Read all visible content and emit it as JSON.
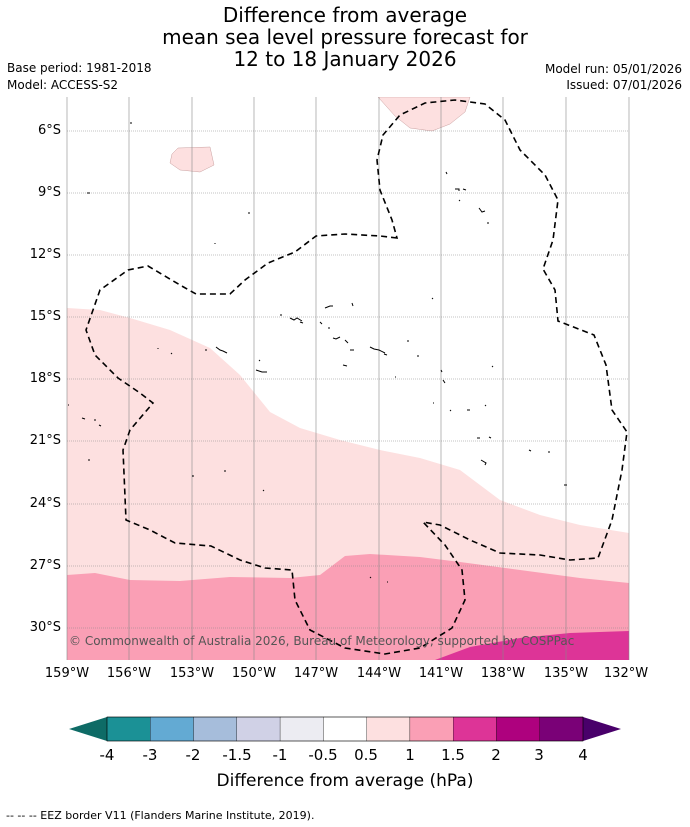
{
  "title": {
    "line1": "Difference from average",
    "line2": "mean sea level pressure forecast for",
    "line3": "12 to 18 January 2026"
  },
  "meta": {
    "base_period": "Base period: 1981-2018",
    "model": "Model: ACCESS-S2",
    "model_run": "Model run: 05/01/2026",
    "issued": "Issued: 07/01/2026"
  },
  "map": {
    "lat_labels": [
      "6°S",
      "9°S",
      "12°S",
      "15°S",
      "18°S",
      "21°S",
      "24°S",
      "27°S",
      "30°S"
    ],
    "lon_labels": [
      "159°W",
      "156°W",
      "153°W",
      "150°W",
      "147°W",
      "144°W",
      "141°W",
      "138°W",
      "135°W",
      "132°W"
    ],
    "copyright": "© Commonwealth of Australia 2026, Bureau of Meteorology, supported by COSPPac"
  },
  "colorbar": {
    "ticks": [
      "-4",
      "-3",
      "-2",
      "-1.5",
      "-1",
      "-0.5",
      "0.5",
      "1",
      "1.5",
      "2",
      "3",
      "4"
    ],
    "colors": [
      "#1b9196",
      "#63aad3",
      "#a6bddb",
      "#d0d1e6",
      "#ececf2",
      "#ffffff",
      "#fde0e0",
      "#fa9fb5",
      "#dd3497",
      "#ae017e",
      "#7a0177"
    ],
    "under_color": "#0e6b66",
    "over_color": "#49006a",
    "label": "Difference from average (hPa)"
  },
  "legend_note": "--  --  -- EEZ border V11 (Flanders Marine Institute, 2019)."
}
